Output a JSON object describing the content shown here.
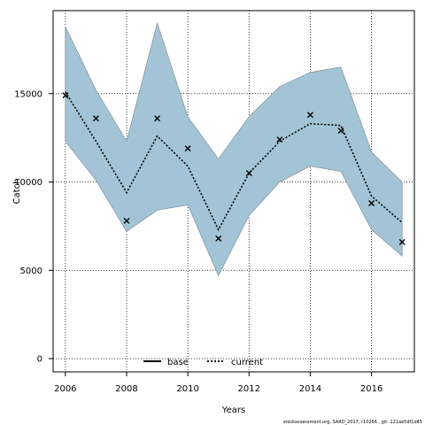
{
  "chart_data": {
    "type": "line",
    "title": "",
    "xlabel": "Years",
    "ylabel": "Catch",
    "xlim": [
      2005.6,
      2017.4
    ],
    "ylim": [
      -750,
      19700
    ],
    "x_ticks": [
      2006,
      2008,
      2010,
      2012,
      2014,
      2016
    ],
    "y_ticks": [
      0,
      5000,
      10000,
      15000
    ],
    "grid": true,
    "grid_style": "dotted",
    "x": [
      2006,
      2007,
      2008,
      2009,
      2010,
      2011,
      2012,
      2013,
      2014,
      2015,
      2016,
      2017
    ],
    "band": {
      "color": "#a3c4d6",
      "edge_color": "#8a9aa3",
      "upper": [
        18800,
        15200,
        12300,
        19000,
        13700,
        11300,
        13700,
        15400,
        16200,
        16500,
        11700,
        10000
      ],
      "lower": [
        12300,
        10100,
        7200,
        8400,
        8700,
        4700,
        8100,
        10000,
        10900,
        10600,
        7300,
        5800
      ]
    },
    "series": [
      {
        "name": "current",
        "style": "dotted",
        "color": "#000000",
        "values": [
          15100,
          12300,
          9400,
          12600,
          10900,
          7300,
          10500,
          12300,
          13300,
          13200,
          9200,
          7700
        ]
      }
    ],
    "observed": {
      "marker": "x",
      "color": "#000000",
      "values": [
        14900,
        13600,
        7800,
        13600,
        11900,
        6800,
        10500,
        12400,
        13800,
        12900,
        8800,
        6600
      ]
    },
    "legend": {
      "placement": "bottom-center",
      "entries": [
        {
          "label": "base",
          "style": "solid"
        },
        {
          "label": "current",
          "style": "dotted"
        }
      ]
    },
    "footnote": "stockassessment.org, SARD_2017, r10266 , git: 121ae5df1d45"
  }
}
